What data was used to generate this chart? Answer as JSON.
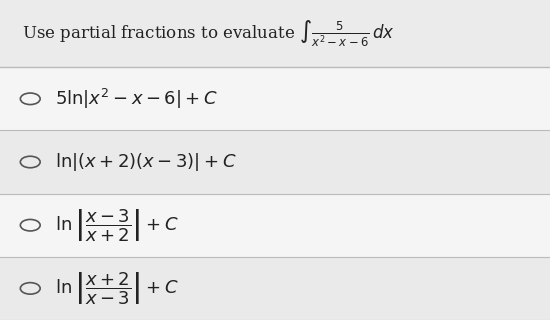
{
  "title": "Use partial fractions to evaluate $\\int \\frac{5}{x^2 - x - 6}\\,dx$",
  "options": [
    "$5\\ln|x^2 - x - 6| + C$",
    "$\\ln|(x+2)(x-3)| + C$",
    "$\\ln\\left|\\dfrac{x-3}{x+2}\\right| + C$",
    "$\\ln\\left|\\dfrac{x+2}{x-3}\\right| + C$"
  ],
  "bg_color": "#e0e0e0",
  "row_colors": [
    "#f5f5f5",
    "#eaeaea",
    "#f5f5f5",
    "#eaeaea"
  ],
  "title_bg": "#ebebeb",
  "title_fontsize": 12,
  "option_fontsize": 13,
  "circle_color": "#555555",
  "text_color": "#222222",
  "line_color": "#bbbbbb"
}
